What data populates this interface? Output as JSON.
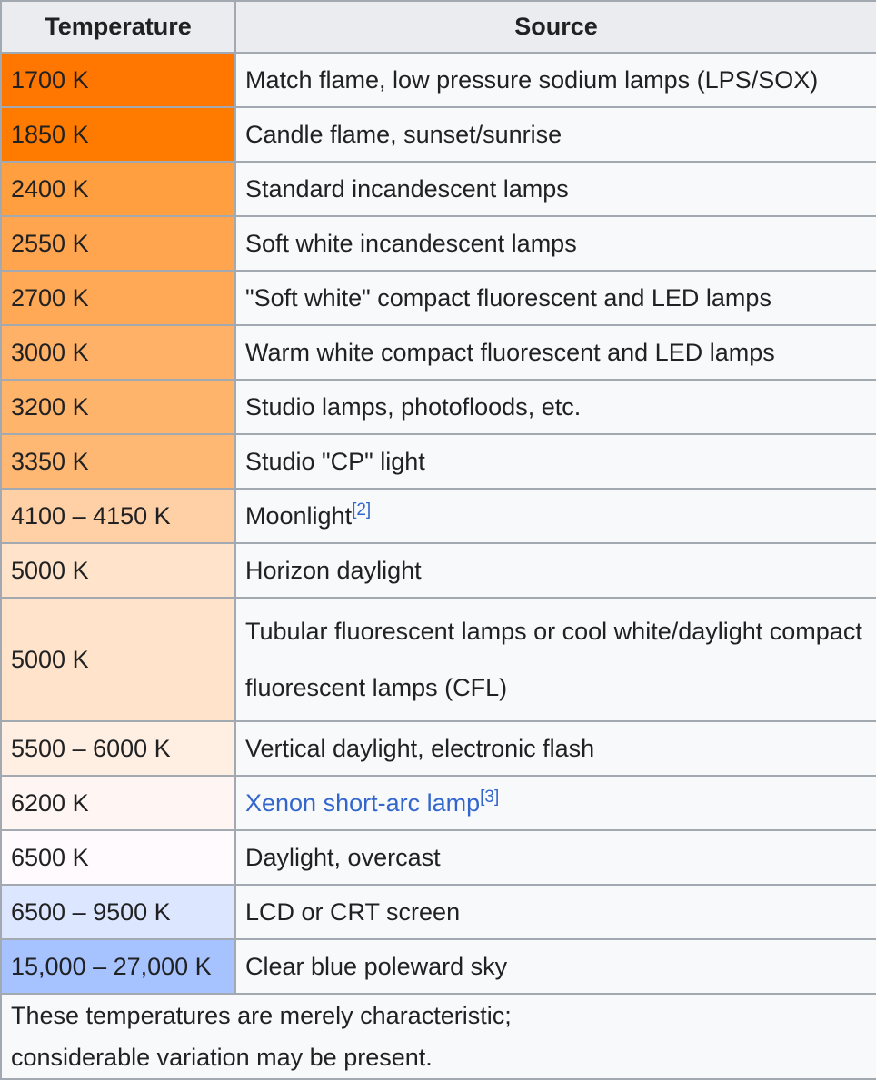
{
  "table": {
    "headers": {
      "temperature": "Temperature",
      "source": "Source"
    },
    "rows": [
      {
        "temperature": "1700 K",
        "source": "Match flame, low pressure sodium lamps (LPS/SOX)",
        "color": "#ff7600"
      },
      {
        "temperature": "1850 K",
        "source": "Candle flame, sunset/sunrise",
        "color": "#ff7b00"
      },
      {
        "temperature": "2400 K",
        "source": "Standard incandescent lamps",
        "color": "#ff9f3f"
      },
      {
        "temperature": "2550 K",
        "source": "Soft white incandescent lamps",
        "color": "#ffa54f"
      },
      {
        "temperature": "2700 K",
        "source": "\"Soft white\" compact fluorescent and LED lamps",
        "color": "#ffa957"
      },
      {
        "temperature": "3000 K",
        "source": "Warm white compact fluorescent and LED lamps",
        "color": "#ffb167"
      },
      {
        "temperature": "3200 K",
        "source": "Studio lamps, photofloods, etc.",
        "color": "#ffb46c"
      },
      {
        "temperature": "3350 K",
        "source": "Studio \"CP\" light",
        "color": "#ffb774"
      },
      {
        "temperature": "4100 – 4150 K",
        "source": "Moonlight",
        "ref": "[2]",
        "color": "#ffcfa5"
      },
      {
        "temperature": "5000 K",
        "source": "Horizon daylight",
        "color": "#ffe3cb"
      },
      {
        "temperature": "5000 K",
        "source": "Tubular fluorescent lamps or cool white/daylight compact fluorescent lamps (CFL)",
        "color": "#ffe3cb"
      },
      {
        "temperature": "5500 – 6000 K",
        "source": "Vertical daylight, electronic flash",
        "color": "#ffefe3"
      },
      {
        "temperature": "6200 K",
        "source": "Xenon short-arc lamp",
        "ref": "[3]",
        "source_is_link": true,
        "color": "#fff5f2"
      },
      {
        "temperature": "6500 K",
        "source": "Daylight, overcast",
        "color": "#fffafe"
      },
      {
        "temperature": "6500 – 9500 K",
        "source": "LCD or CRT screen",
        "color": "#dde6ff"
      },
      {
        "temperature": "15,000 – 27,000 K",
        "source": "Clear blue poleward sky",
        "color": "#a7c3ff"
      }
    ],
    "footnote": {
      "line1": "These temperatures are merely characteristic;",
      "line2": "considerable variation may be present."
    }
  }
}
